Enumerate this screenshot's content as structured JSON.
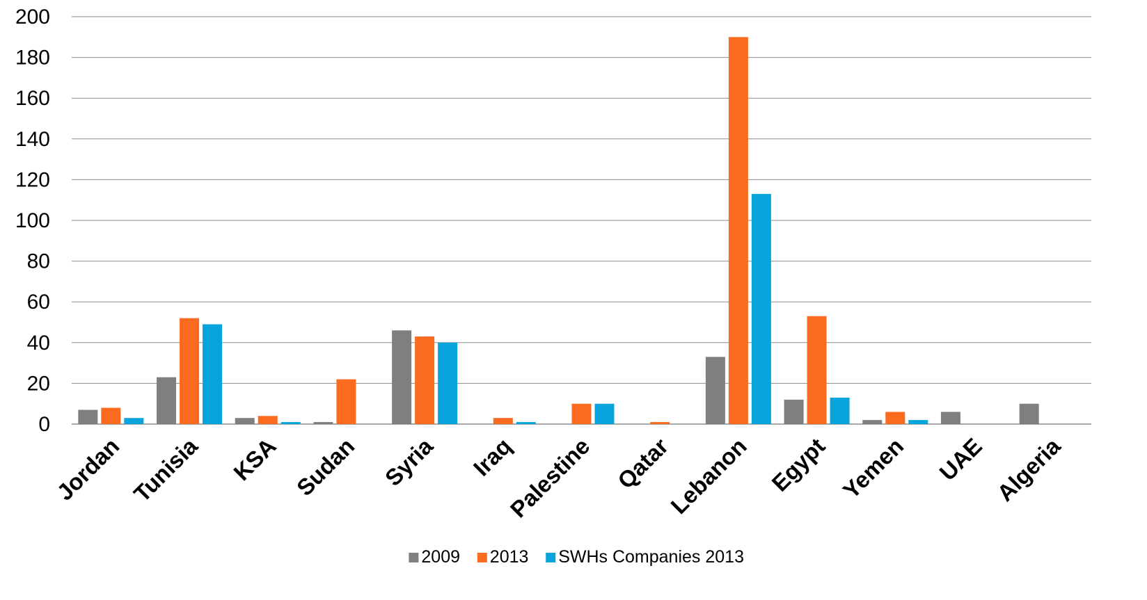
{
  "chart_data": {
    "type": "bar",
    "title": "",
    "xlabel": "",
    "ylabel": "",
    "categories": [
      "Jordan",
      "Tunisia",
      "KSA",
      "Sudan",
      "Syria",
      "Iraq",
      "Palestine",
      "Qatar",
      "Lebanon",
      "Egypt",
      "Yemen",
      "UAE",
      "Algeria"
    ],
    "series": [
      {
        "name": "2009",
        "color": "#7f7f7f",
        "values": [
          7,
          23,
          3,
          1,
          46,
          0,
          0,
          0,
          33,
          12,
          2,
          6,
          10
        ]
      },
      {
        "name": "2013",
        "color": "#fa6b20",
        "values": [
          8,
          52,
          4,
          22,
          43,
          3,
          10,
          1,
          190,
          53,
          6,
          0,
          0
        ]
      },
      {
        "name": "SWHs Companies 2013",
        "color": "#0aa4dc",
        "values": [
          3,
          49,
          1,
          0,
          40,
          1,
          10,
          0,
          113,
          13,
          2,
          0,
          0
        ]
      }
    ],
    "ylim": [
      0,
      200
    ],
    "yticks": [
      "0",
      "20",
      "40",
      "60",
      "80",
      "100",
      "120",
      "140",
      "160",
      "180",
      "200"
    ],
    "grid": true,
    "legend_position": "bottom"
  }
}
